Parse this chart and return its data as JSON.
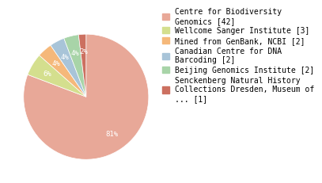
{
  "labels": [
    "Centre for Biodiversity\nGenomics [42]",
    "Wellcome Sanger Institute [3]",
    "Mined from GenBank, NCBI [2]",
    "Canadian Centre for DNA\nBarcoding [2]",
    "Beijing Genomics Institute [2]",
    "Senckenberg Natural History\nCollections Dresden, Museum of\n... [1]"
  ],
  "values": [
    42,
    3,
    2,
    2,
    2,
    1
  ],
  "colors": [
    "#e8a898",
    "#d4df8e",
    "#f5b87a",
    "#a8c4d8",
    "#a8d4a8",
    "#cc7060"
  ],
  "startangle": 90,
  "counterclock": false,
  "text_color": "white",
  "legend_fontsize": 7.0,
  "autopct_fontsize": 6.5,
  "pctdistance": 0.72
}
